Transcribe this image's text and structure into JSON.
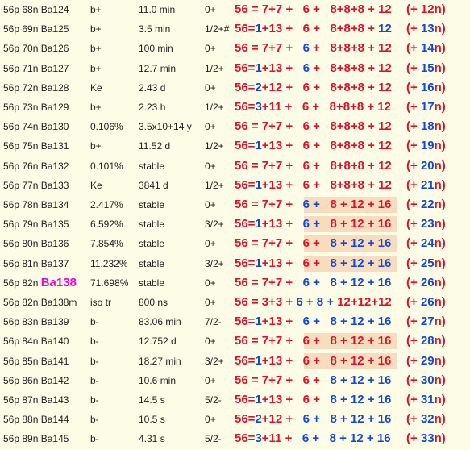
{
  "rows": [
    {
      "iso": "56p 68n Ba124",
      "mode": "b+",
      "half_life": "11.0 min",
      "spin": "0+",
      "formula": [
        [
          "56 = 7+7 + ",
          "red"
        ],
        [
          "  6 + ",
          "red"
        ],
        [
          "  8+8+8 + 12",
          "red"
        ]
      ],
      "tail": [
        [
          "(+ 12",
          "red"
        ],
        [
          "n)",
          "red"
        ]
      ],
      "highlight": false
    },
    {
      "iso": "56p 69n Ba125",
      "mode": "b+",
      "half_life": "3.5 min",
      "spin": "1/2+#",
      "formula": [
        [
          "56=",
          "red"
        ],
        [
          "1",
          "blue"
        ],
        [
          "+13 + ",
          "red"
        ],
        [
          "  6 + ",
          "red"
        ],
        [
          "  8+8+8 + ",
          "red"
        ],
        [
          "12",
          "blue"
        ]
      ],
      "tail": [
        [
          "(+ ",
          "red"
        ],
        [
          "13",
          "blue"
        ],
        [
          "n)",
          "red"
        ]
      ],
      "highlight": false
    },
    {
      "iso": "56p 70n Ba126",
      "mode": "b+",
      "half_life": "100 min",
      "spin": "0+",
      "formula": [
        [
          "56 = 7+7 + ",
          "red"
        ],
        [
          "  ",
          "red"
        ],
        [
          "6",
          "blue"
        ],
        [
          " + ",
          "red"
        ],
        [
          "  8+8+8 + 12",
          "red"
        ]
      ],
      "tail": [
        [
          "(+ ",
          "red"
        ],
        [
          "14",
          "blue"
        ],
        [
          "n)",
          "red"
        ]
      ],
      "highlight": false
    },
    {
      "iso": "56p 71n Ba127",
      "mode": "b+",
      "half_life": "12.7 min",
      "spin": "1/2+",
      "formula": [
        [
          "56=",
          "red"
        ],
        [
          "1",
          "blue"
        ],
        [
          "+13 + ",
          "red"
        ],
        [
          "  ",
          "red"
        ],
        [
          "6",
          "blue"
        ],
        [
          " + ",
          "red"
        ],
        [
          "  8+8+8 + 12",
          "red"
        ]
      ],
      "tail": [
        [
          "(+ ",
          "red"
        ],
        [
          "15",
          "blue"
        ],
        [
          "n)",
          "red"
        ]
      ],
      "highlight": false
    },
    {
      "iso": "56p 72n Ba128",
      "mode": "Ke",
      "half_life": "2.43 d",
      "spin": "0+",
      "formula": [
        [
          "56=",
          "red"
        ],
        [
          "2",
          "blue"
        ],
        [
          "+12 + ",
          "red"
        ],
        [
          "  6 + ",
          "red"
        ],
        [
          "  8+8+8 + 12",
          "red"
        ]
      ],
      "tail": [
        [
          "(+ ",
          "red"
        ],
        [
          "16",
          "blue"
        ],
        [
          "n)",
          "red"
        ]
      ],
      "highlight": false
    },
    {
      "iso": "56p 73n Ba129",
      "mode": "b+",
      "half_life": "2.23 h",
      "spin": "1/2+",
      "formula": [
        [
          "56=",
          "red"
        ],
        [
          "3",
          "blue"
        ],
        [
          "+11 + ",
          "red"
        ],
        [
          "  6 + ",
          "red"
        ],
        [
          "  8+8+8 + 12",
          "red"
        ]
      ],
      "tail": [
        [
          "(+ ",
          "red"
        ],
        [
          "17",
          "blue"
        ],
        [
          "n)",
          "red"
        ]
      ],
      "highlight": false
    },
    {
      "iso": "56p 74n Ba130",
      "mode": "0.106%",
      "half_life": "3.5x10+14 y",
      "spin": "0+",
      "formula": [
        [
          "56 = 7+7 + ",
          "red"
        ],
        [
          "  6 + ",
          "red"
        ],
        [
          "  8+8+8 + 12",
          "red"
        ]
      ],
      "tail": [
        [
          "(+ ",
          "red"
        ],
        [
          "18",
          "blue"
        ],
        [
          "n)",
          "red"
        ]
      ],
      "highlight": false
    },
    {
      "iso": "56p 75n Ba131",
      "mode": "b+",
      "half_life": "11.52 d",
      "spin": "1/2+",
      "formula": [
        [
          "56=",
          "red"
        ],
        [
          "1",
          "blue"
        ],
        [
          "+13 + ",
          "red"
        ],
        [
          "  6 + ",
          "red"
        ],
        [
          "  8+8+8 + 12",
          "red"
        ]
      ],
      "tail": [
        [
          "(+ ",
          "red"
        ],
        [
          "19",
          "blue"
        ],
        [
          "n)",
          "red"
        ]
      ],
      "highlight": false
    },
    {
      "iso": "56p 76n Ba132",
      "mode": "0.101%",
      "half_life": "stable",
      "spin": "0+",
      "formula": [
        [
          "56 = 7+7 + ",
          "red"
        ],
        [
          "  6 + ",
          "red"
        ],
        [
          "  8+8+8 + 12",
          "red"
        ]
      ],
      "tail": [
        [
          "(+ ",
          "red"
        ],
        [
          "20",
          "blue"
        ],
        [
          "n)",
          "red"
        ]
      ],
      "highlight": false
    },
    {
      "iso": "56p 77n Ba133",
      "mode": "Ke",
      "half_life": "3841 d",
      "spin": "1/2+",
      "formula": [
        [
          "56=",
          "red"
        ],
        [
          "1",
          "blue"
        ],
        [
          "+13 + ",
          "red"
        ],
        [
          "  6 + ",
          "red"
        ],
        [
          "  8+8+8 + 12",
          "red"
        ]
      ],
      "tail": [
        [
          "(+ ",
          "red"
        ],
        [
          "21",
          "blue"
        ],
        [
          "n)",
          "red"
        ]
      ],
      "highlight": false
    },
    {
      "iso": "56p 78n Ba134",
      "mode": "2.417%",
      "half_life": "stable",
      "spin": "0+",
      "formula": [
        [
          "56 = 7+7 + ",
          "red"
        ],
        [
          "  6 + ",
          "blue"
        ],
        [
          "  8 + 12 + 16",
          "red"
        ]
      ],
      "tail": [
        [
          "(+ ",
          "red"
        ],
        [
          "22",
          "blue"
        ],
        [
          "n)",
          "red"
        ]
      ],
      "highlight": true
    },
    {
      "iso": "56p 79n Ba135",
      "mode": "6.592%",
      "half_life": "stable",
      "spin": "3/2+",
      "formula": [
        [
          "56=",
          "red"
        ],
        [
          "1",
          "blue"
        ],
        [
          "+13 + ",
          "red"
        ],
        [
          "  6 + ",
          "blue"
        ],
        [
          "  8 + 12 + 16",
          "red"
        ]
      ],
      "tail": [
        [
          "(+ ",
          "red"
        ],
        [
          "23",
          "blue"
        ],
        [
          "n)",
          "red"
        ]
      ],
      "highlight": true
    },
    {
      "iso": "56p 80n Ba136",
      "mode": "7.854%",
      "half_life": "stable",
      "spin": "0+",
      "formula": [
        [
          "56 = 7+7 + ",
          "red"
        ],
        [
          "  6 + ",
          "red"
        ],
        [
          "  8 + 12 + 16",
          "blue"
        ]
      ],
      "tail": [
        [
          "(+ ",
          "red"
        ],
        [
          "24",
          "blue"
        ],
        [
          "n)",
          "red"
        ]
      ],
      "highlight": true
    },
    {
      "iso": "56p 81n Ba137",
      "mode": "11.232%",
      "half_life": "stable",
      "spin": "3/2+",
      "formula": [
        [
          "56=",
          "red"
        ],
        [
          "1",
          "blue"
        ],
        [
          "+13 + ",
          "red"
        ],
        [
          "  6 + ",
          "red"
        ],
        [
          "  8 + 12 + 16",
          "blue"
        ]
      ],
      "tail": [
        [
          "(+ ",
          "red"
        ],
        [
          "25",
          "blue"
        ],
        [
          "n)",
          "red"
        ]
      ],
      "highlight": true
    },
    {
      "iso_prefix": "56p 82n ",
      "iso_special": "Ba138",
      "mode": "71.698%",
      "half_life": "stable",
      "spin": "0+",
      "formula": [
        [
          "56 = 7+7 + ",
          "red"
        ],
        [
          "  6 + ",
          "blue"
        ],
        [
          "  8 + 12 + 16",
          "blue"
        ]
      ],
      "tail": [
        [
          "(+ ",
          "red"
        ],
        [
          "26",
          "blue"
        ],
        [
          "n)",
          "red"
        ]
      ],
      "highlight": false
    },
    {
      "iso": "56p 82n Ba138m",
      "mode": "iso tr",
      "half_life": "800 ns",
      "spin": "0+",
      "formula": [
        [
          "56 = 3+3 + ",
          "red"
        ],
        [
          "6 + 8 + ",
          "blue"
        ],
        [
          "12+12+12",
          "red"
        ]
      ],
      "tail": [
        [
          "(+ ",
          "red"
        ],
        [
          "26",
          "blue"
        ],
        [
          "n)",
          "red"
        ]
      ],
      "highlight": false
    },
    {
      "iso": "56p 83n Ba139",
      "mode": "b-",
      "half_life": "83.06 min",
      "spin": "7/2-",
      "formula": [
        [
          "56=",
          "red"
        ],
        [
          "1",
          "blue"
        ],
        [
          "+13 + ",
          "red"
        ],
        [
          "  6 + ",
          "blue"
        ],
        [
          "  8 + 12 + 16",
          "blue"
        ]
      ],
      "tail": [
        [
          "(+ ",
          "red"
        ],
        [
          "27",
          "blue"
        ],
        [
          "n)",
          "red"
        ]
      ],
      "highlight": false
    },
    {
      "iso": "56p 84n Ba140",
      "mode": "b-",
      "half_life": "12.752 d",
      "spin": "0+",
      "formula": [
        [
          "56 = 7+7 + ",
          "red"
        ],
        [
          "  6 + ",
          "red"
        ],
        [
          "  8 + 12 + 16",
          "red"
        ]
      ],
      "tail": [
        [
          "(+ ",
          "red"
        ],
        [
          "28",
          "blue"
        ],
        [
          "n)",
          "red"
        ]
      ],
      "highlight": true
    },
    {
      "iso": "56p 85n Ba141",
      "mode": "b-",
      "half_life": "18.27 min",
      "spin": "3/2+",
      "formula": [
        [
          "56=",
          "red"
        ],
        [
          "1",
          "blue"
        ],
        [
          "+13 + ",
          "red"
        ],
        [
          "  6 + ",
          "red"
        ],
        [
          "  8 + 12 + 16",
          "red"
        ]
      ],
      "tail": [
        [
          "(+ ",
          "red"
        ],
        [
          "29",
          "blue"
        ],
        [
          "n)",
          "red"
        ]
      ],
      "highlight": true
    },
    {
      "iso": "56p 86n Ba142",
      "mode": "b-",
      "half_life": "10.6 min",
      "spin": "0+",
      "formula": [
        [
          "56 = 7+7 + ",
          "red"
        ],
        [
          "  6 + ",
          "red"
        ],
        [
          "  8 + 12 + 16",
          "blue"
        ]
      ],
      "tail": [
        [
          "(+ ",
          "red"
        ],
        [
          "30",
          "blue"
        ],
        [
          "n)",
          "red"
        ]
      ],
      "highlight": false
    },
    {
      "iso": "56p 87n Ba143",
      "mode": "b-",
      "half_life": "14.5 s",
      "spin": "5/2-",
      "formula": [
        [
          "56=",
          "red"
        ],
        [
          "1",
          "blue"
        ],
        [
          "+13 + ",
          "red"
        ],
        [
          "  6 + ",
          "red"
        ],
        [
          "  8 + 12 + 16",
          "blue"
        ]
      ],
      "tail": [
        [
          "(+ ",
          "red"
        ],
        [
          "31",
          "blue"
        ],
        [
          "n)",
          "red"
        ]
      ],
      "highlight": false
    },
    {
      "iso": "56p 88n Ba144",
      "mode": "b-",
      "half_life": "10.5 s",
      "spin": "0+",
      "formula": [
        [
          "56=",
          "red"
        ],
        [
          "2",
          "blue"
        ],
        [
          "+12 + ",
          "red"
        ],
        [
          "  6 + ",
          "blue"
        ],
        [
          "  8 + 12 + 16",
          "blue"
        ]
      ],
      "tail": [
        [
          "(+ ",
          "red"
        ],
        [
          "32",
          "blue"
        ],
        [
          "n)",
          "red"
        ]
      ],
      "highlight": false
    },
    {
      "iso": "56p 89n Ba145",
      "mode": "b-",
      "half_life": "4.31 s",
      "spin": "5/2-",
      "formula": [
        [
          "56=",
          "red"
        ],
        [
          "3",
          "blue"
        ],
        [
          "+11 + ",
          "red"
        ],
        [
          "  6 + ",
          "blue"
        ],
        [
          "  8 + 12 + 16",
          "blue"
        ]
      ],
      "tail": [
        [
          "(+ ",
          "red"
        ],
        [
          "33",
          "blue"
        ],
        [
          "n)",
          "red"
        ]
      ],
      "highlight": false
    }
  ]
}
